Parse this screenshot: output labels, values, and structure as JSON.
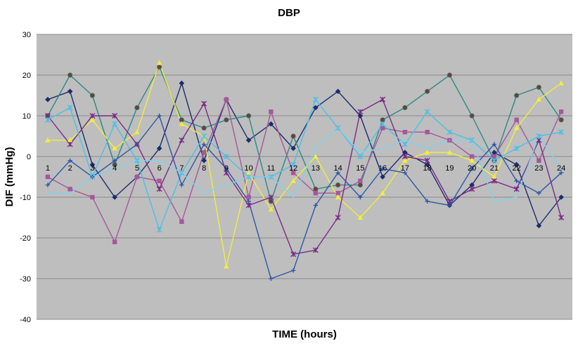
{
  "chart_data": {
    "type": "line",
    "title": "DBP",
    "xlabel": "TIME (hours)",
    "ylabel": "DIF (mmHg)",
    "x": [
      1,
      2,
      3,
      4,
      5,
      6,
      7,
      8,
      9,
      10,
      11,
      12,
      13,
      14,
      15,
      16,
      17,
      18,
      19,
      20,
      21,
      22,
      23,
      24
    ],
    "x_tick_labels": [
      "1",
      "2",
      "3",
      "4",
      "5",
      "6",
      "7",
      "8",
      "9",
      "10",
      "11",
      "12",
      "13",
      "14",
      "15",
      "16",
      "17",
      "18",
      "19",
      "20",
      "21",
      "22",
      "23",
      "24"
    ],
    "ylim": [
      -40,
      30
    ],
    "y_ticks": [
      30,
      20,
      10,
      0,
      -10,
      -20,
      -30,
      -40
    ],
    "grid": "horizontal",
    "legend": "none",
    "plot_background": "#bebebe",
    "series": [
      {
        "color": "#1f2a6e",
        "marker": "diamond",
        "values": [
          14,
          16,
          -2,
          -10,
          -5,
          2,
          18,
          -1,
          14,
          4,
          8,
          2,
          12,
          16,
          10,
          -5,
          1,
          -2,
          -12,
          -7,
          1,
          -2,
          -17,
          -10
        ]
      },
      {
        "color": "#2a8a86",
        "marker": "circle",
        "values": [
          10,
          20,
          15,
          -2,
          12,
          22,
          9,
          7,
          9,
          10,
          -11,
          5,
          -8,
          -7,
          -7,
          9,
          12,
          16,
          20,
          10,
          -1,
          15,
          17,
          9
        ]
      },
      {
        "color": "#a5579c",
        "marker": "square",
        "values": [
          -5,
          -8,
          -10,
          -21,
          -5,
          -6,
          -16,
          1,
          14,
          -10,
          11,
          -4,
          -9,
          -9,
          -6,
          7,
          6,
          6,
          4,
          0,
          0,
          9,
          -1,
          11
        ]
      },
      {
        "color": "#f2ed3c",
        "marker": "triangle",
        "values": [
          4,
          4,
          9,
          2,
          6,
          23,
          8,
          5,
          -27,
          -4,
          -13,
          -6,
          0,
          -10,
          -15,
          -9,
          -1,
          1,
          1,
          -1,
          -5,
          7,
          14,
          18
        ]
      },
      {
        "color": "#7a2a86",
        "marker": "x",
        "values": [
          10,
          3,
          10,
          10,
          3,
          -8,
          4,
          13,
          -4,
          -12,
          -10,
          -24,
          -23,
          -15,
          11,
          14,
          0,
          -1,
          -11,
          -8,
          -6,
          -8,
          4,
          -15
        ]
      },
      {
        "color": "#4dbfe6",
        "marker": "x",
        "values": [
          9,
          12,
          -5,
          8,
          -1,
          -18,
          -4,
          5,
          0,
          -5,
          -5,
          -2,
          14,
          7,
          0,
          8,
          3,
          11,
          6,
          4,
          -1,
          2,
          5,
          6
        ]
      },
      {
        "color": "#2c57a8",
        "marker": "plus",
        "values": [
          -7,
          -1,
          -5,
          -1,
          3,
          10,
          -7,
          3,
          -3,
          -11,
          -30,
          -28,
          -12,
          -4,
          -10,
          -3,
          -4,
          -11,
          -12,
          -3,
          3,
          -6,
          -9,
          -4
        ]
      },
      {
        "color": "#7fd2ee",
        "marker": "none",
        "values": [
          -9,
          -9,
          -5,
          -3,
          -1,
          -1,
          -4,
          -9,
          -7,
          -5,
          -5,
          -10,
          2,
          7,
          1,
          2,
          4,
          2,
          4,
          4,
          -11,
          -10,
          5,
          -3
        ]
      }
    ]
  }
}
